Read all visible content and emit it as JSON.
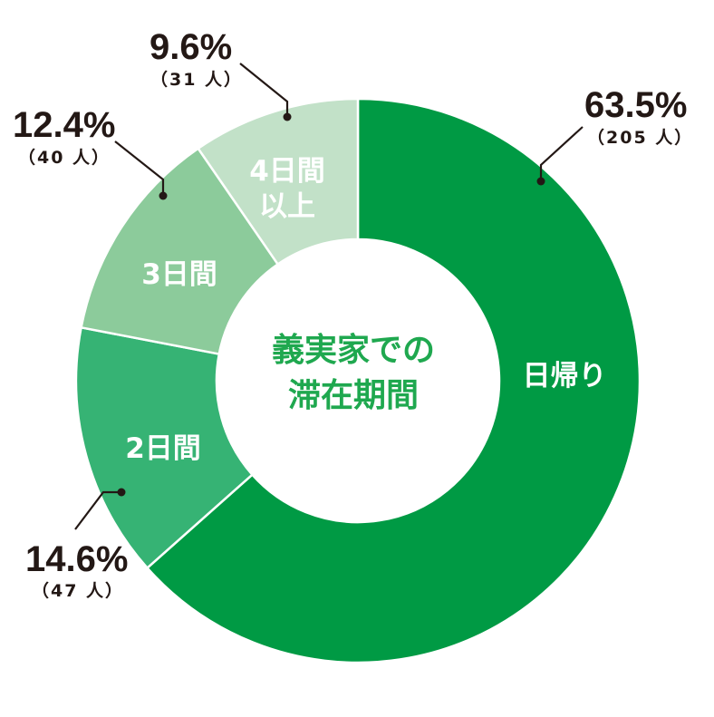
{
  "chart_data": {
    "type": "pie",
    "subtype": "donut",
    "title": "義実家での滞在期間",
    "categories": [
      "日帰り",
      "2日間",
      "3日間",
      "4日間以上"
    ],
    "values": [
      63.5,
      14.6,
      12.4,
      9.6
    ],
    "counts": [
      205,
      47,
      40,
      31
    ],
    "unit": "%",
    "count_unit": "人",
    "colors": [
      "#009a44",
      "#36b374",
      "#8ccb9b",
      "#c2e1c8"
    ],
    "start_angle": "12 o'clock",
    "direction": "clockwise",
    "legend": "none (labels inside segments)"
  },
  "center": {
    "line1": "義実家での",
    "line2": "滞在期間"
  },
  "segments": [
    {
      "label_line1": "日帰り",
      "label_line2": "",
      "pct": "63.5%",
      "count": "（205 人）"
    },
    {
      "label_line1": "2日間",
      "label_line2": "",
      "pct": "14.6%",
      "count": "（47 人）"
    },
    {
      "label_line1": "3日間",
      "label_line2": "",
      "pct": "12.4%",
      "count": "（40 人）"
    },
    {
      "label_line1": "4日間",
      "label_line2": "以上",
      "pct": "9.6%",
      "count": "（31 人）"
    }
  ]
}
